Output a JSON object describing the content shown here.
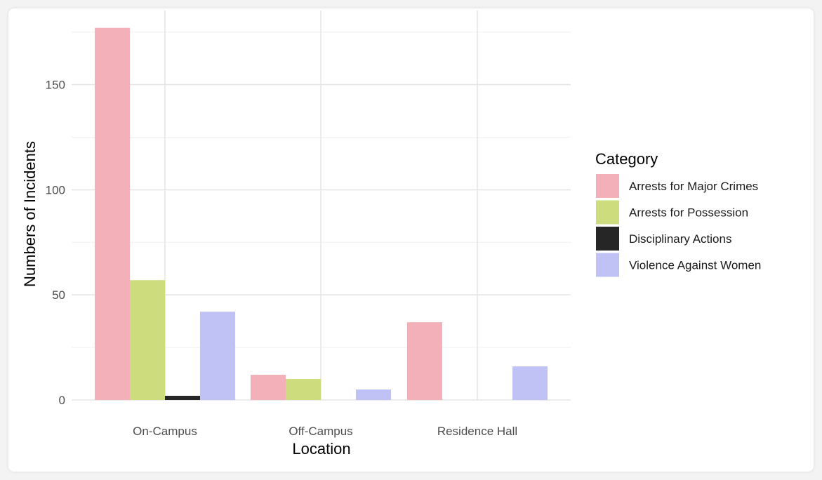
{
  "chart_data": {
    "type": "bar",
    "title": "",
    "xlabel": "Location",
    "ylabel": "Numbers of Incidents",
    "categories": [
      "On-Campus",
      "Off-Campus",
      "Residence Hall"
    ],
    "series": [
      {
        "name": "Arrests for Major Crimes",
        "color": "#f4b0b8",
        "values": [
          177,
          12,
          37
        ]
      },
      {
        "name": "Arrests for Possession",
        "color": "#cddd7d",
        "values": [
          57,
          10,
          0
        ]
      },
      {
        "name": "Disciplinary Actions",
        "color": "#262626",
        "values": [
          2,
          0,
          0
        ]
      },
      {
        "name": "Violence Against Women",
        "color": "#c0c2f6",
        "values": [
          42,
          5,
          16
        ]
      }
    ],
    "ylim": [
      0,
      183
    ],
    "yticks": [
      0,
      50,
      100,
      150
    ],
    "grid": true,
    "legend": {
      "title": "Category",
      "position": "right"
    }
  }
}
